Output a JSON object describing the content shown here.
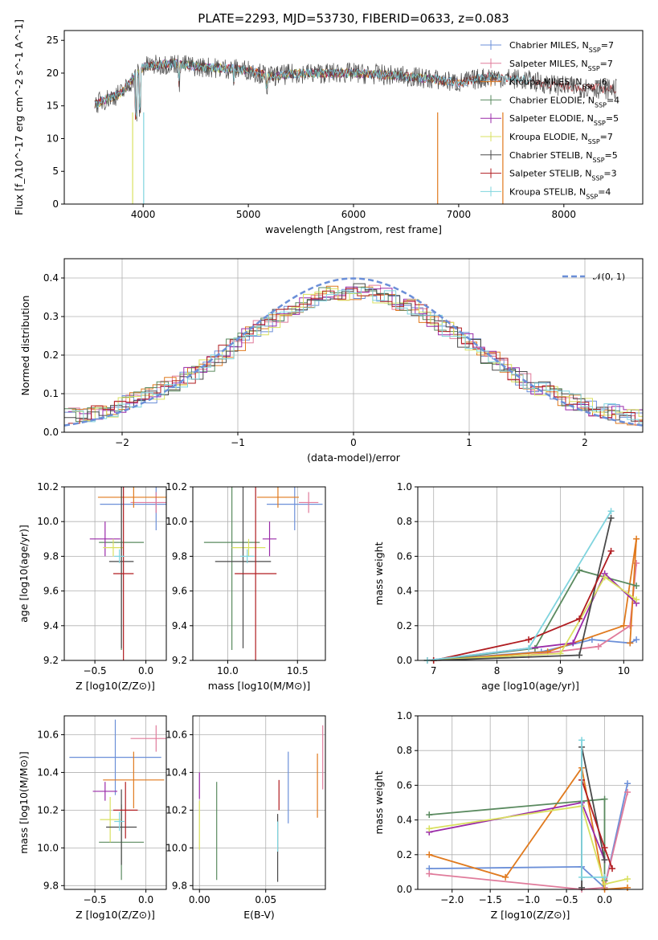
{
  "title": "PLATE=2293, MJD=53730, FIBERID=0633, z=0.083",
  "colors": {
    "Chabrier MILES": "#6b8fd8",
    "Salpeter MILES": "#e07b9b",
    "Kroupa MILES": "#e07a1e",
    "Chabrier ELODIE": "#5a8a5f",
    "Salpeter ELODIE": "#9a2aa8",
    "Kroupa ELODIE": "#d9e060",
    "Chabrier STELIB": "#4a4a4a",
    "Salpeter STELIB": "#b01c20",
    "Kroupa STELIB": "#7fd4de"
  },
  "chart_data": [
    {
      "id": "spectrum",
      "type": "line",
      "xlabel": "wavelength [Angstrom, rest frame]",
      "ylabel": "Flux [f_λ10^-17 erg cm^-2 s^-1 A^-1]",
      "xlim": [
        3250,
        8750
      ],
      "ylim": [
        0,
        26.5
      ],
      "xticks": [
        "4000",
        "5000",
        "6000",
        "7000",
        "8000"
      ],
      "yticks": [
        "0",
        "5",
        "10",
        "15",
        "20",
        "25"
      ],
      "legend": [
        {
          "model": "Chabrier MILES",
          "n": "7"
        },
        {
          "model": "Salpeter MILES",
          "n": "7"
        },
        {
          "model": "Kroupa MILES",
          "n": "6"
        },
        {
          "model": "Chabrier ELODIE",
          "n": "4"
        },
        {
          "model": "Salpeter ELODIE",
          "n": "5"
        },
        {
          "model": "Kroupa ELODIE",
          "n": "7"
        },
        {
          "model": "Chabrier STELIB",
          "n": "5"
        },
        {
          "model": "Salpeter STELIB",
          "n": "3"
        },
        {
          "model": "Kroupa STELIB",
          "n": "4"
        }
      ],
      "legend_placement": "upper-right",
      "continuum": {
        "x": [
          3500,
          3800,
          4000,
          4300,
          4500,
          5000,
          5200,
          5500,
          6000,
          6500,
          6800,
          7000,
          7300,
          7600,
          8000,
          8500
        ],
        "y": [
          15,
          17,
          21,
          21.5,
          21,
          20.5,
          19.5,
          20,
          20,
          19.5,
          19,
          18.5,
          19.5,
          19,
          18,
          17.5
        ]
      }
    },
    {
      "id": "residuals",
      "type": "step",
      "xlabel": "(data-model)/error",
      "ylabel": "Normed distribution",
      "xlim": [
        -2.5,
        2.5
      ],
      "ylim": [
        0,
        0.45
      ],
      "xticks": [
        "−2",
        "−1",
        "0",
        "1",
        "2"
      ],
      "yticks": [
        "0.0",
        "0.1",
        "0.2",
        "0.3",
        "0.4"
      ],
      "legend": [
        "𝒩(0, 1)"
      ],
      "legend_placement": "upper-right",
      "grid": true
    },
    {
      "id": "age-vs-Z",
      "type": "errorbar",
      "xlabel": "Z [log10(Z/Z⊙)]",
      "ylabel": "age [log10(age/yr)]",
      "xlim": [
        -0.8,
        0.2
      ],
      "ylim": [
        9.2,
        10.2
      ],
      "xticks": [
        "−0.5",
        "0.0"
      ],
      "yticks": [
        "9.2",
        "9.4",
        "9.6",
        "9.8",
        "10.0",
        "10.2"
      ],
      "grid": true,
      "points": [
        {
          "model": "Chabrier MILES",
          "x": 0.1,
          "xerr": 0.55,
          "y": 10.1,
          "yerr": 0.15
        },
        {
          "model": "Salpeter MILES",
          "x": 0.1,
          "xerr": 0.25,
          "y": 10.11,
          "yerr": 0.06
        },
        {
          "model": "Kroupa MILES",
          "x": -0.12,
          "xerr": 0.35,
          "y": 10.14,
          "yerr": 0.06
        },
        {
          "model": "Chabrier ELODIE",
          "x": -0.24,
          "xerr": 0.22,
          "y": 9.88,
          "yerr": 0.62
        },
        {
          "model": "Salpeter ELODIE",
          "x": -0.4,
          "xerr": 0.15,
          "y": 9.9,
          "yerr": 0.1
        },
        {
          "model": "Kroupa ELODIE",
          "x": -0.32,
          "xerr": 0.1,
          "y": 9.85,
          "yerr": 0.05
        },
        {
          "model": "Chabrier STELIB",
          "x": -0.24,
          "xerr": 0.12,
          "y": 9.77,
          "yerr": 0.5
        },
        {
          "model": "Salpeter STELIB",
          "x": -0.22,
          "xerr": 0.1,
          "y": 9.7,
          "yerr": 0.5
        },
        {
          "model": "Kroupa STELIB",
          "x": -0.26,
          "xerr": 0.05,
          "y": 9.8,
          "yerr": 0.04
        }
      ]
    },
    {
      "id": "age-vs-mass",
      "type": "errorbar",
      "xlabel": "mass [log10(M/M⊙)]",
      "xlim": [
        9.75,
        10.7
      ],
      "ylim": [
        9.2,
        10.2
      ],
      "xticks": [
        "10.0",
        "10.5"
      ],
      "yticks": [
        "9.2",
        "9.4",
        "9.6",
        "9.8",
        "10.0",
        "10.2"
      ],
      "grid": true,
      "points": [
        {
          "model": "Chabrier MILES",
          "x": 10.48,
          "xerr": 0.2,
          "y": 10.1,
          "yerr": 0.15
        },
        {
          "model": "Salpeter MILES",
          "x": 10.58,
          "xerr": 0.07,
          "y": 10.11,
          "yerr": 0.06
        },
        {
          "model": "Kroupa MILES",
          "x": 10.36,
          "xerr": 0.15,
          "y": 10.14,
          "yerr": 0.06
        },
        {
          "model": "Chabrier ELODIE",
          "x": 10.03,
          "xerr": 0.2,
          "y": 9.88,
          "yerr": 0.62
        },
        {
          "model": "Salpeter ELODIE",
          "x": 10.3,
          "xerr": 0.05,
          "y": 9.9,
          "yerr": 0.1
        },
        {
          "model": "Kroupa ELODIE",
          "x": 10.15,
          "xerr": 0.12,
          "y": 9.85,
          "yerr": 0.05
        },
        {
          "model": "Chabrier STELIB",
          "x": 10.11,
          "xerr": 0.2,
          "y": 9.77,
          "yerr": 0.5
        },
        {
          "model": "Salpeter STELIB",
          "x": 10.2,
          "xerr": 0.15,
          "y": 9.7,
          "yerr": 0.5
        },
        {
          "model": "Kroupa STELIB",
          "x": 10.14,
          "xerr": 0.05,
          "y": 9.8,
          "yerr": 0.04
        }
      ]
    },
    {
      "id": "weight-vs-age",
      "type": "line",
      "xlabel": "age [log10(age/yr)]",
      "ylabel": "mass weight",
      "xlim": [
        6.75,
        10.3
      ],
      "ylim": [
        0,
        1.0
      ],
      "xticks": [
        "7",
        "8",
        "9",
        "10"
      ],
      "yticks": [
        "0.0",
        "0.2",
        "0.4",
        "0.6",
        "0.8",
        "1.0"
      ],
      "grid": true,
      "series": [
        {
          "name": "Chabrier MILES",
          "x": [
            6.9,
            8.7,
            9.5,
            10.1,
            10.2
          ],
          "y": [
            0.0,
            0.05,
            0.12,
            0.1,
            0.12
          ]
        },
        {
          "name": "Salpeter MILES",
          "x": [
            6.9,
            8.5,
            9.6,
            10.1,
            10.2
          ],
          "y": [
            0.0,
            0.03,
            0.08,
            0.2,
            0.56
          ]
        },
        {
          "name": "Kroupa MILES",
          "x": [
            7.0,
            8.8,
            10.0,
            10.2,
            10.1
          ],
          "y": [
            0.0,
            0.05,
            0.2,
            0.7,
            0.1
          ]
        },
        {
          "name": "Chabrier ELODIE",
          "x": [
            7.0,
            8.6,
            9.3,
            10.2
          ],
          "y": [
            0.0,
            0.07,
            0.52,
            0.43
          ]
        },
        {
          "name": "Salpeter ELODIE",
          "x": [
            6.9,
            9.2,
            9.7,
            10.2
          ],
          "y": [
            0.0,
            0.1,
            0.5,
            0.33
          ]
        },
        {
          "name": "Kroupa ELODIE",
          "x": [
            6.9,
            9.0,
            9.7,
            10.2
          ],
          "y": [
            0.0,
            0.04,
            0.48,
            0.35
          ]
        },
        {
          "name": "Chabrier STELIB",
          "x": [
            7.0,
            9.3,
            9.8
          ],
          "y": [
            0.0,
            0.03,
            0.82
          ]
        },
        {
          "name": "Salpeter STELIB",
          "x": [
            7.0,
            8.5,
            9.3,
            9.8
          ],
          "y": [
            0.0,
            0.12,
            0.24,
            0.63
          ]
        },
        {
          "name": "Kroupa STELIB",
          "x": [
            6.9,
            8.5,
            9.8
          ],
          "y": [
            0.0,
            0.07,
            0.86
          ]
        }
      ]
    },
    {
      "id": "mass-vs-Z",
      "type": "errorbar",
      "xlabel": "Z [log10(Z/Z⊙)]",
      "ylabel": "mass [log10(M/M⊙)]",
      "xlim": [
        -0.8,
        0.2
      ],
      "ylim": [
        9.78,
        10.7
      ],
      "xticks": [
        "−0.5",
        "0.0"
      ],
      "yticks": [
        "9.8",
        "10.0",
        "10.2",
        "10.4",
        "10.6"
      ],
      "grid": true,
      "points": [
        {
          "model": "Chabrier MILES",
          "x": -0.3,
          "xerr": 0.45,
          "y": 10.48,
          "yerr": 0.2
        },
        {
          "model": "Salpeter MILES",
          "x": 0.1,
          "xerr": 0.25,
          "y": 10.58,
          "yerr": 0.07
        },
        {
          "model": "Kroupa MILES",
          "x": -0.12,
          "xerr": 0.3,
          "y": 10.36,
          "yerr": 0.15
        },
        {
          "model": "Chabrier ELODIE",
          "x": -0.24,
          "xerr": 0.22,
          "y": 10.03,
          "yerr": 0.2
        },
        {
          "model": "Salpeter ELODIE",
          "x": -0.4,
          "xerr": 0.12,
          "y": 10.3,
          "yerr": 0.05
        },
        {
          "model": "Kroupa ELODIE",
          "x": -0.35,
          "xerr": 0.1,
          "y": 10.15,
          "yerr": 0.12
        },
        {
          "model": "Chabrier STELIB",
          "x": -0.24,
          "xerr": 0.15,
          "y": 10.11,
          "yerr": 0.2
        },
        {
          "model": "Salpeter STELIB",
          "x": -0.2,
          "xerr": 0.12,
          "y": 10.2,
          "yerr": 0.15
        },
        {
          "model": "Kroupa STELIB",
          "x": -0.26,
          "xerr": 0.05,
          "y": 10.14,
          "yerr": 0.05
        }
      ]
    },
    {
      "id": "mass-vs-EBV",
      "type": "errorbar",
      "xlabel": "E(B-V)",
      "xlim": [
        -0.005,
        0.095
      ],
      "ylim": [
        9.78,
        10.7
      ],
      "xticks": [
        "0.00",
        "0.05"
      ],
      "yticks": [
        "9.8",
        "10.0",
        "10.2",
        "10.4",
        "10.6"
      ],
      "grid": true,
      "points": [
        {
          "model": "Chabrier MILES",
          "x": 0.067,
          "y": 10.32,
          "yerr": 0.19
        },
        {
          "model": "Salpeter MILES",
          "x": 0.093,
          "y": 10.48,
          "yerr": 0.17
        },
        {
          "model": "Kroupa MILES",
          "x": 0.089,
          "y": 10.33,
          "yerr": 0.17
        },
        {
          "model": "Chabrier ELODIE",
          "x": 0.013,
          "y": 10.09,
          "yerr": 0.26
        },
        {
          "model": "Salpeter ELODIE",
          "x": 0.0,
          "y": 10.33,
          "yerr": 0.07
        },
        {
          "model": "Kroupa ELODIE",
          "x": 0.0,
          "y": 10.12,
          "yerr": 0.13
        },
        {
          "model": "Chabrier STELIB",
          "x": 0.059,
          "y": 10.0,
          "yerr": 0.18
        },
        {
          "model": "Salpeter STELIB",
          "x": 0.06,
          "y": 10.28,
          "yerr": 0.08
        },
        {
          "model": "Kroupa STELIB",
          "x": 0.059,
          "y": 10.06,
          "yerr": 0.08
        }
      ]
    },
    {
      "id": "weight-vs-Z",
      "type": "line",
      "xlabel": "Z [log10(Z/Z⊙)]",
      "ylabel": "mass weight",
      "xlim": [
        -2.45,
        0.5
      ],
      "ylim": [
        0,
        1.0
      ],
      "xticks": [
        "−2.0",
        "−1.5",
        "−1.0",
        "−0.5",
        "0.0"
      ],
      "yticks": [
        "0.0",
        "0.2",
        "0.4",
        "0.6",
        "0.8",
        "1.0"
      ],
      "grid": true,
      "series": [
        {
          "name": "Chabrier MILES",
          "x": [
            -2.3,
            -0.3,
            0.0,
            0.3
          ],
          "y": [
            0.12,
            0.13,
            0.01,
            0.61
          ]
        },
        {
          "name": "Salpeter MILES",
          "x": [
            -2.3,
            -0.3,
            0.0,
            0.3
          ],
          "y": [
            0.09,
            0.0,
            0.01,
            0.56
          ]
        },
        {
          "name": "Kroupa MILES",
          "x": [
            -2.3,
            -1.3,
            -0.3,
            0.0,
            0.3
          ],
          "y": [
            0.2,
            0.07,
            0.7,
            0.0,
            0.01
          ]
        },
        {
          "name": "Chabrier ELODIE",
          "x": [
            -2.3,
            0.0,
            0.0
          ],
          "y": [
            0.43,
            0.52,
            0.05
          ]
        },
        {
          "name": "Salpeter ELODIE",
          "x": [
            -2.3,
            -0.3,
            0.0
          ],
          "y": [
            0.33,
            0.5,
            0.17
          ]
        },
        {
          "name": "Kroupa ELODIE",
          "x": [
            -2.3,
            -0.3,
            0.0,
            0.3
          ],
          "y": [
            0.35,
            0.48,
            0.03,
            0.06
          ]
        },
        {
          "name": "Chabrier STELIB",
          "x": [
            -0.3,
            -0.3,
            0.0
          ],
          "y": [
            0.01,
            0.82,
            0.17
          ]
        },
        {
          "name": "Salpeter STELIB",
          "x": [
            -0.3,
            0.0,
            0.1
          ],
          "y": [
            0.63,
            0.24,
            0.12
          ]
        },
        {
          "name": "Kroupa STELIB",
          "x": [
            -0.3,
            -0.3,
            0.0
          ],
          "y": [
            0.86,
            0.07,
            0.07
          ]
        }
      ]
    }
  ]
}
